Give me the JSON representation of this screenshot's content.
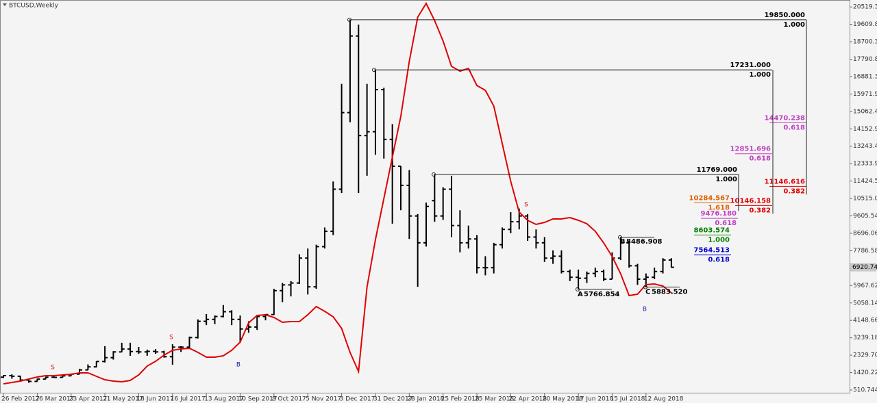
{
  "chart_data": {
    "type": "ohlc",
    "title": "BTCUSD,Weekly",
    "categories": [
      "26 Feb 2017",
      null,
      null,
      null,
      "26 Mar 2017",
      null,
      null,
      null,
      "23 Apr 2017",
      null,
      null,
      null,
      "21 May 2017",
      null,
      null,
      null,
      "18 Jun 2017",
      null,
      null,
      null,
      "16 Jul 2017",
      null,
      null,
      null,
      "13 Aug 2017",
      null,
      null,
      null,
      "10 Sep 2017",
      null,
      null,
      null,
      "8 Oct 2017",
      null,
      null,
      null,
      "5 Nov 2017",
      null,
      null,
      null,
      "3 Dec 2017",
      null,
      null,
      null,
      "31 Dec 2017",
      null,
      null,
      null,
      "28 Jan 2018",
      null,
      null,
      null,
      "25 Feb 2018",
      null,
      null,
      null,
      "25 Mar 2018",
      null,
      null,
      null,
      "22 Apr 2018",
      null,
      null,
      null,
      "20 May 2018",
      null,
      null,
      null,
      "17 Jun 2018",
      null,
      null,
      null,
      "15 Jul 2018",
      null,
      null,
      null,
      "12 Aug 2018",
      null,
      null,
      null
    ],
    "open": [
      1180,
      1260,
      1230,
      1030,
      960,
      1080,
      1180,
      1170,
      1250,
      1340,
      1560,
      1720,
      2000,
      2200,
      2500,
      2650,
      2520,
      2500,
      2530,
      2500,
      2250,
      2750,
      2750,
      3250,
      4100,
      4200,
      4350,
      4600,
      4200,
      3700,
      3800,
      4350,
      4450,
      5700,
      6000,
      6100,
      7400,
      5900,
      8000,
      8800,
      11000,
      15000,
      19000,
      13800,
      14000,
      16200,
      13600,
      12200,
      11200,
      9600,
      8200,
      10400,
      9600,
      11000,
      9100,
      8200,
      8400,
      6900,
      6900,
      8100,
      8900,
      9300,
      9600,
      8500,
      8200,
      7400,
      7500,
      6700,
      6400,
      6350,
      6600,
      6700,
      6300,
      7400,
      8200,
      7000,
      6300,
      6400,
      6700,
      7300
    ],
    "high": [
      1290,
      1330,
      1260,
      1110,
      1100,
      1210,
      1220,
      1270,
      1350,
      1620,
      1850,
      2010,
      2800,
      2540,
      2980,
      2980,
      2760,
      2620,
      2650,
      2560,
      2900,
      2800,
      3300,
      4200,
      4480,
      4400,
      4950,
      4680,
      4400,
      4100,
      4400,
      4480,
      5800,
      6100,
      6200,
      7600,
      7900,
      8100,
      9000,
      11400,
      16500,
      19850,
      19600,
      16500,
      17231,
      16300,
      14400,
      12200,
      12000,
      9700,
      10300,
      11769,
      11100,
      11700,
      9900,
      9100,
      8600,
      7500,
      8200,
      9000,
      9800,
      9990,
      9700,
      8900,
      8500,
      7800,
      7800,
      6800,
      6800,
      6700,
      6900,
      6800,
      7700,
      8486.908,
      8300,
      7100,
      6600,
      6900,
      7400,
      7400
    ],
    "low": [
      1140,
      1100,
      950,
      890,
      950,
      1070,
      1140,
      1160,
      1240,
      1330,
      1550,
      1690,
      1950,
      2100,
      2480,
      2300,
      2400,
      2300,
      2400,
      2200,
      1830,
      2500,
      2650,
      3200,
      3900,
      3950,
      4300,
      3900,
      2970,
      3500,
      3650,
      4150,
      4430,
      5100,
      5400,
      6050,
      5500,
      5800,
      7900,
      8600,
      10800,
      14500,
      10800,
      11700,
      12800,
      12600,
      9200,
      9900,
      8400,
      5900,
      8000,
      9300,
      9400,
      8500,
      7700,
      7900,
      6600,
      6500,
      6600,
      7900,
      8700,
      8900,
      8300,
      7900,
      7200,
      7100,
      6600,
      6200,
      5766.854,
      6100,
      6400,
      6200,
      6300,
      7300,
      6900,
      6000,
      5883.52,
      6300,
      6600,
      6900
    ],
    "close": [
      1260,
      1230,
      1030,
      960,
      1080,
      1180,
      1170,
      1250,
      1340,
      1560,
      1720,
      2000,
      2200,
      2500,
      2650,
      2520,
      2500,
      2530,
      2500,
      2250,
      2750,
      2750,
      3250,
      4100,
      4200,
      4350,
      4600,
      4200,
      3700,
      3800,
      4350,
      4450,
      5700,
      6000,
      6100,
      7400,
      5900,
      8000,
      8800,
      11000,
      15000,
      19000,
      13800,
      14000,
      16200,
      13600,
      12200,
      11200,
      9600,
      8200,
      10100,
      9600,
      11000,
      9100,
      8200,
      8400,
      6900,
      6900,
      8100,
      8900,
      9300,
      9600,
      8500,
      8200,
      7400,
      7500,
      6700,
      6400,
      6350,
      6600,
      6700,
      6300,
      7400,
      8200,
      7000,
      6300,
      6400,
      6700,
      7300,
      6920.744
    ],
    "indicator": {
      "color": "#e00000",
      "values": [
        832,
        904,
        975,
        1083,
        1190,
        1261,
        1261,
        1297,
        1333,
        1404,
        1404,
        1226,
        1047,
        975,
        940,
        1011,
        1297,
        1762,
        2012,
        2333,
        2584,
        2655,
        2691,
        2476,
        2226,
        2226,
        2298,
        2584,
        3012,
        4013,
        4406,
        4442,
        4299,
        4049,
        4085,
        4085,
        4442,
        4871,
        4621,
        4335,
        3727,
        2476,
        1476,
        5872,
        8374,
        10518,
        12663,
        14807,
        17666,
        19989,
        20704,
        19810,
        18738,
        17415,
        17165,
        17308,
        16415,
        16164,
        15342,
        13376,
        11411,
        9803,
        9374,
        9159,
        9267,
        9445,
        9445,
        9517,
        9374,
        9195,
        8802,
        8194,
        7479,
        6586,
        5442,
        5514,
        6014,
        6050,
        5943,
        5586
      ]
    },
    "bar_color": "#000000",
    "last_price": 6920.744,
    "ylim": [
      332,
      20882
    ],
    "yticks": [
      510.744,
      1420.224,
      2329.704,
      3239.184,
      4148.664,
      5058.144,
      5967.624,
      6877.104,
      7786.584,
      8696.064,
      9605.544,
      10515.024,
      11424.504,
      12333.984,
      13243.464,
      14152.944,
      15062.424,
      15971.904,
      16881.384,
      17790.864,
      18700.344,
      19609.824,
      20519.304
    ],
    "levels": [
      {
        "price": {
          "value": 19850,
          "label": "19850.000"
        },
        "ratio": {
          "value": 1,
          "label": "1.000"
        },
        "color": "#000000"
      },
      {
        "price": {
          "value": 17231,
          "label": "17231.000"
        },
        "ratio": {
          "value": 1,
          "label": "1.000"
        },
        "color": "#000000"
      },
      {
        "price": {
          "value": 11769,
          "label": "11769.000"
        },
        "ratio": {
          "value": 1,
          "label": "1.000"
        },
        "color": "#000000"
      },
      {
        "price": 14470.238,
        "ratio": 0.618,
        "color": "#c040c0"
      },
      {
        "price": 12851.696,
        "ratio": 0.618,
        "color": "#c040c0"
      },
      {
        "price": 11146.616,
        "ratio": 0.382,
        "color": "#e00000"
      },
      {
        "price": 10146.158,
        "ratio": 0.382,
        "color": "#e00000"
      },
      {
        "price": 10284.567,
        "ratio": 1.618,
        "color": "#e06000"
      },
      {
        "price": {
          "value": 9476.18,
          "label": "9476.180"
        },
        "ratio": 0.618,
        "color": "#c040c0"
      },
      {
        "price": 8603.574,
        "ratio": {
          "value": 1,
          "label": "1.000"
        },
        "color": "#008000"
      },
      {
        "price": 7564.513,
        "ratio": 0.618,
        "color": "#0000d0"
      }
    ],
    "points": [
      {
        "label": "A",
        "price": 5766.854
      },
      {
        "label": "B",
        "price": 8486.908
      },
      {
        "label": "C",
        "price": {
          "value": 5883.52,
          "label": "5883.520"
        }
      }
    ],
    "signals": [
      {
        "label": "S",
        "color": "#e00000"
      },
      {
        "label": "S",
        "color": "#e00000"
      },
      {
        "label": "S",
        "color": "#e00000"
      },
      {
        "label": "B",
        "color": "#1a1aa0"
      },
      {
        "label": "B",
        "color": "#1a1aa0"
      }
    ]
  }
}
